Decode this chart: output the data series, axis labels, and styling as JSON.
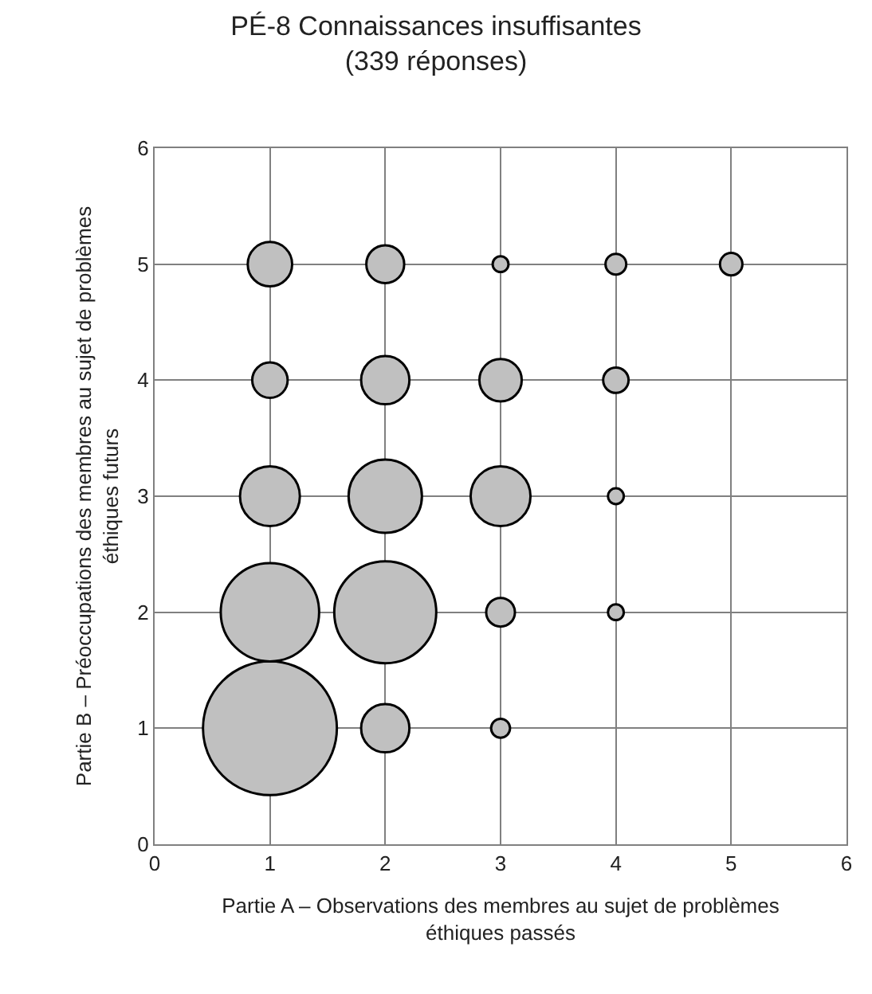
{
  "chart_data": {
    "type": "bubble",
    "title": "PÉ-8 Connaissances insuffisantes",
    "subtitle": "(339 réponses)",
    "xlabel": "Partie A – Observations des membres au sujet de problèmes éthiques passés",
    "ylabel": "Partie B – Préoccupations des membres au sujet de problèmes éthiques futurs",
    "x": [
      1,
      2,
      3,
      1,
      2,
      3,
      4,
      1,
      2,
      3,
      4,
      1,
      2,
      3,
      4,
      1,
      2,
      3,
      4,
      5
    ],
    "values": [
      1,
      1,
      1,
      2,
      2,
      2,
      2,
      3,
      3,
      3,
      3,
      4,
      4,
      4,
      4,
      5,
      5,
      5,
      5,
      5
    ],
    "sizes": [
      1,
      0.13,
      0.02,
      0.54,
      0.58,
      0.046,
      0.014,
      0.2,
      0.3,
      0.2,
      0.014,
      0.07,
      0.13,
      0.1,
      0.036,
      0.11,
      0.08,
      0.014,
      0.024,
      0.028
    ],
    "color": "#c0c0c0",
    "xlim": [
      0,
      6
    ],
    "ylim": [
      0,
      6
    ],
    "xticks": [
      0,
      1,
      2,
      3,
      4,
      5,
      6
    ],
    "yticks": [
      0,
      1,
      2,
      3,
      4,
      5,
      6
    ],
    "grid": true,
    "legend": false
  }
}
